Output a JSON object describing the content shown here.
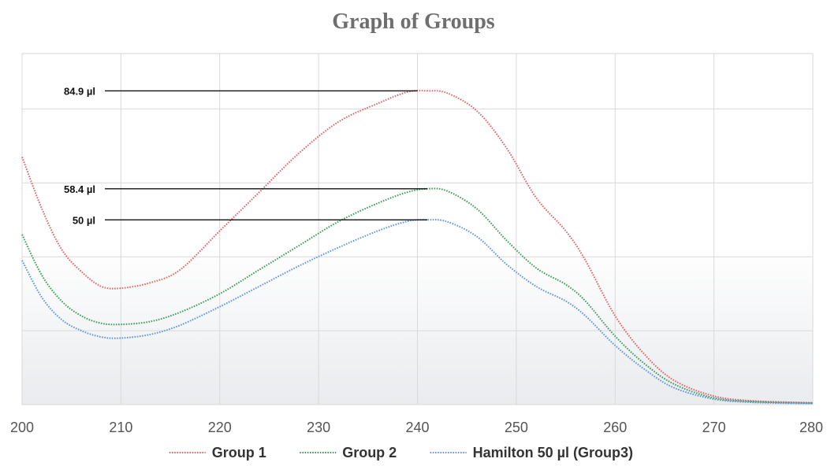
{
  "chart_data": {
    "type": "line",
    "title": "Graph of Groups",
    "xlabel": "",
    "ylabel": "",
    "xlim": [
      200,
      280
    ],
    "ylim": [
      0,
      95
    ],
    "x_ticks": [
      200,
      210,
      220,
      230,
      240,
      250,
      260,
      270,
      280
    ],
    "y_grid_values": [
      0,
      20,
      40,
      60,
      80
    ],
    "grid": true,
    "legend_position": "bottom",
    "series": [
      {
        "name": "Group 1",
        "color": "#d9686b",
        "points": [
          [
            200,
            67
          ],
          [
            202,
            53
          ],
          [
            204,
            42
          ],
          [
            206,
            36
          ],
          [
            208,
            32
          ],
          [
            210,
            31.5
          ],
          [
            213,
            33
          ],
          [
            216,
            36.5
          ],
          [
            220,
            47
          ],
          [
            224,
            57.5
          ],
          [
            228,
            68
          ],
          [
            232,
            76.5
          ],
          [
            236,
            81.5
          ],
          [
            239,
            84.6
          ],
          [
            241,
            84.9
          ],
          [
            243,
            84.3
          ],
          [
            246,
            79.5
          ],
          [
            249,
            69.5
          ],
          [
            252,
            56
          ],
          [
            255,
            47
          ],
          [
            257,
            39
          ],
          [
            260,
            24
          ],
          [
            263,
            13.5
          ],
          [
            266,
            6.5
          ],
          [
            270,
            2.3
          ],
          [
            274,
            1
          ],
          [
            280,
            0.5
          ]
        ]
      },
      {
        "name": "Group 2",
        "color": "#3f9c5e",
        "points": [
          [
            200,
            46
          ],
          [
            202,
            35
          ],
          [
            204,
            28
          ],
          [
            206,
            24
          ],
          [
            208,
            22
          ],
          [
            210,
            21.7
          ],
          [
            213,
            22.5
          ],
          [
            216,
            25
          ],
          [
            220,
            30
          ],
          [
            224,
            36.5
          ],
          [
            228,
            43
          ],
          [
            232,
            49.5
          ],
          [
            236,
            54.5
          ],
          [
            239,
            57.5
          ],
          [
            241,
            58.4
          ],
          [
            243,
            57.8
          ],
          [
            246,
            53
          ],
          [
            249,
            44.5
          ],
          [
            252,
            37
          ],
          [
            255,
            32.5
          ],
          [
            257,
            28
          ],
          [
            260,
            18.5
          ],
          [
            263,
            11
          ],
          [
            266,
            5.5
          ],
          [
            270,
            1.8
          ],
          [
            274,
            0.8
          ],
          [
            280,
            0.4
          ]
        ]
      },
      {
        "name": "Hamilton 50 µl (Group3)",
        "color": "#5f97dc",
        "points": [
          [
            200,
            39
          ],
          [
            202,
            29
          ],
          [
            204,
            23
          ],
          [
            206,
            20
          ],
          [
            208,
            18.3
          ],
          [
            210,
            18
          ],
          [
            213,
            19
          ],
          [
            216,
            21.5
          ],
          [
            220,
            26.5
          ],
          [
            224,
            32
          ],
          [
            228,
            37.5
          ],
          [
            232,
            42.5
          ],
          [
            236,
            47
          ],
          [
            239,
            49.6
          ],
          [
            241,
            50
          ],
          [
            243,
            49.5
          ],
          [
            246,
            45.5
          ],
          [
            249,
            38
          ],
          [
            252,
            32
          ],
          [
            255,
            28
          ],
          [
            257,
            24
          ],
          [
            260,
            16
          ],
          [
            263,
            9.5
          ],
          [
            266,
            4.5
          ],
          [
            270,
            1.5
          ],
          [
            274,
            0.6
          ],
          [
            280,
            0.3
          ]
        ]
      }
    ],
    "annotations": [
      {
        "label": "84.9 µl",
        "value": 84.9,
        "x_end": 240
      },
      {
        "label": "58.4 µl",
        "value": 58.4,
        "x_end": 241
      },
      {
        "label": "50 µl",
        "value": 50,
        "x_end": 241
      }
    ]
  }
}
